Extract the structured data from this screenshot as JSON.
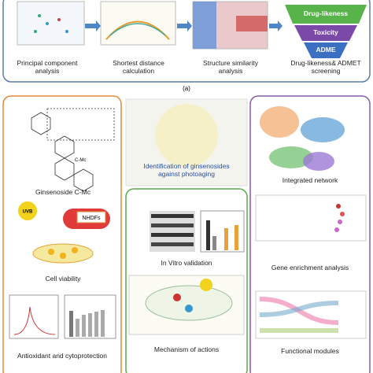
{
  "panel_a": {
    "steps": [
      "Principal component analysis",
      "Shortest distance calculation",
      "Structure similarity analysis",
      "Drug-likeness& ADMET screening"
    ],
    "funnel": [
      "Drug-likeness",
      "Toxicity",
      "ADME"
    ],
    "label": "(a)"
  },
  "left_panel": {
    "compound": "Ginsenoside C-Mc",
    "compound_tag": "C-Mc",
    "uvb": "UVB",
    "cells": "NHDFs",
    "viability": "Cell viability",
    "result": "Antioxidant and cytoprotection"
  },
  "center_panel": {
    "title": "Identification of ginsenosides against photoaging",
    "validation": "In Vitro validation",
    "mechanism": "Mechanism of actions"
  },
  "right_panel": {
    "network": "Integrated network",
    "enrichment": "Gene enrichment analysis",
    "modules": "Functional modules"
  }
}
